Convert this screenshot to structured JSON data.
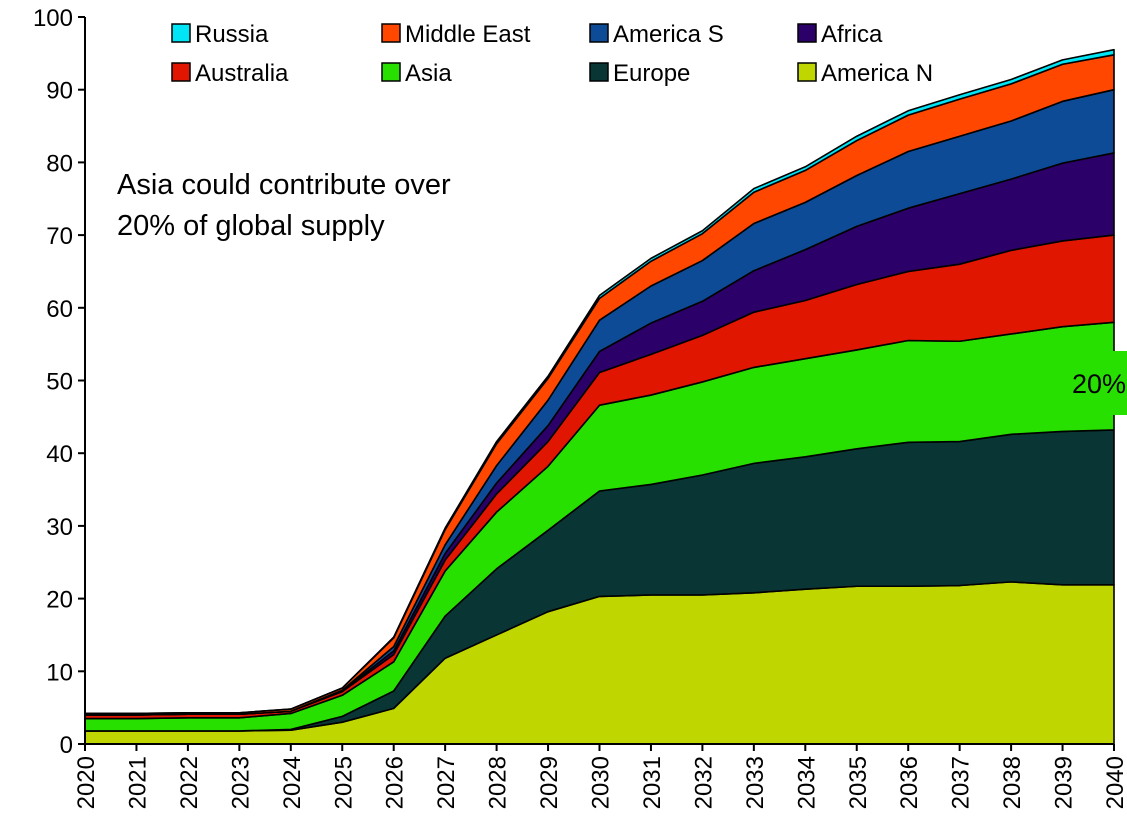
{
  "chart_data": {
    "type": "area",
    "stacked": true,
    "x": [
      2020,
      2021,
      2022,
      2023,
      2024,
      2025,
      2026,
      2027,
      2028,
      2029,
      2030,
      2031,
      2032,
      2033,
      2034,
      2035,
      2036,
      2037,
      2038,
      2039,
      2040
    ],
    "ylim": [
      0,
      100
    ],
    "yticks": [
      0,
      10,
      20,
      30,
      40,
      50,
      60,
      70,
      80,
      90,
      100
    ],
    "grid": false,
    "legend_position": "top",
    "series": [
      {
        "name": "America N",
        "color": "#bfd600",
        "values": [
          1.8,
          1.8,
          1.8,
          1.8,
          1.9,
          3.0,
          4.9,
          11.8,
          15.0,
          18.2,
          20.3,
          20.5,
          20.5,
          20.8,
          21.3,
          21.7,
          21.7,
          21.8,
          22.3,
          21.9,
          21.9
        ]
      },
      {
        "name": "Europe",
        "color": "#0a3535",
        "values": [
          0.0,
          0.0,
          0.0,
          0.0,
          0.1,
          0.8,
          2.4,
          5.8,
          9.1,
          11.2,
          14.5,
          15.2,
          16.5,
          17.8,
          18.2,
          18.9,
          19.8,
          19.8,
          20.3,
          21.1,
          21.3
        ]
      },
      {
        "name": "Asia",
        "color": "#27e000",
        "values": [
          1.7,
          1.7,
          1.8,
          1.8,
          2.2,
          2.9,
          4.0,
          6.2,
          7.8,
          8.8,
          11.8,
          12.3,
          12.8,
          13.2,
          13.5,
          13.6,
          14.0,
          13.8,
          13.8,
          14.4,
          14.8
        ]
      },
      {
        "name": "Australia",
        "color": "#e01600",
        "values": [
          0.5,
          0.5,
          0.5,
          0.5,
          0.3,
          0.5,
          1.0,
          1.5,
          2.5,
          3.4,
          4.5,
          5.6,
          6.4,
          7.6,
          8.0,
          9.0,
          9.5,
          10.6,
          11.5,
          11.8,
          12.0
        ]
      },
      {
        "name": "Africa",
        "color": "#2b0068",
        "values": [
          0.0,
          0.0,
          0.0,
          0.0,
          0.0,
          0.1,
          0.5,
          0.9,
          1.5,
          2.2,
          2.9,
          4.3,
          4.7,
          5.7,
          7.0,
          8.0,
          8.7,
          9.7,
          9.8,
          10.7,
          11.3
        ]
      },
      {
        "name": "America S",
        "color": "#0e4b97",
        "values": [
          0.0,
          0.0,
          0.0,
          0.0,
          0.0,
          0.1,
          0.6,
          1.2,
          2.4,
          3.5,
          4.3,
          5.1,
          5.6,
          6.5,
          6.5,
          7.0,
          7.8,
          7.9,
          8.0,
          8.5,
          8.7
        ]
      },
      {
        "name": "Middle East",
        "color": "#ff4700",
        "values": [
          0.2,
          0.2,
          0.2,
          0.2,
          0.3,
          0.3,
          1.2,
          2.1,
          3.0,
          3.0,
          3.0,
          3.4,
          3.7,
          4.3,
          4.4,
          4.8,
          5.0,
          5.1,
          5.1,
          5.1,
          4.8
        ]
      },
      {
        "name": "Russia",
        "color": "#00e5f5",
        "values": [
          0.0,
          0.0,
          0.0,
          0.0,
          0.0,
          0.0,
          0.1,
          0.2,
          0.3,
          0.3,
          0.4,
          0.4,
          0.4,
          0.5,
          0.5,
          0.6,
          0.6,
          0.6,
          0.6,
          0.6,
          0.7
        ]
      }
    ],
    "legend_rows": [
      [
        "Russia",
        "Middle East",
        "America S",
        "Africa"
      ],
      [
        "Australia",
        "Asia",
        "Europe",
        "America N"
      ]
    ],
    "annotations": [
      {
        "lines": [
          "Asia could contribute over",
          "20% of global supply"
        ]
      },
      {
        "text": "20%",
        "background": "#27e000"
      }
    ]
  }
}
